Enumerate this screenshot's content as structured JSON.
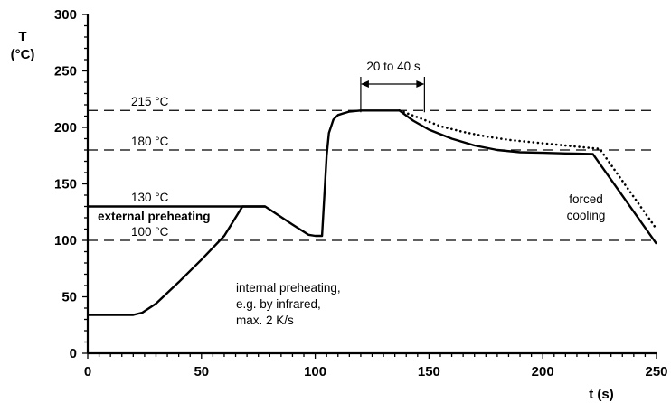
{
  "chart_data": {
    "type": "line",
    "xlabel": "t (s)",
    "ylabel": [
      "T",
      "(°C)"
    ],
    "xlim": [
      0,
      250
    ],
    "ylim": [
      0,
      300
    ],
    "x_ticks": [
      0,
      50,
      100,
      150,
      200,
      250
    ],
    "y_ticks": [
      0,
      50,
      100,
      150,
      200,
      250,
      300
    ],
    "grid": false,
    "reference_lines": [
      {
        "y": 215,
        "label": "215 °C"
      },
      {
        "y": 180,
        "label": "180 °C"
      },
      {
        "y": 100,
        "label": "100 °C"
      }
    ],
    "series": [
      {
        "style": "solid",
        "points": [
          [
            0,
            34
          ],
          [
            20,
            34
          ],
          [
            24,
            36
          ],
          [
            30,
            44
          ],
          [
            40,
            63
          ],
          [
            50,
            83
          ],
          [
            60,
            104
          ],
          [
            68,
            130
          ],
          [
            78,
            130
          ],
          [
            90,
            114
          ],
          [
            97,
            105
          ],
          [
            100,
            104
          ],
          [
            103,
            104
          ],
          [
            104,
            140
          ],
          [
            105,
            175
          ],
          [
            106,
            195
          ],
          [
            108,
            207
          ],
          [
            110,
            211
          ],
          [
            115,
            214
          ],
          [
            120,
            215
          ],
          [
            137,
            215
          ],
          [
            143,
            206
          ],
          [
            150,
            198
          ],
          [
            160,
            190
          ],
          [
            170,
            184
          ],
          [
            180,
            180
          ],
          [
            190,
            178
          ],
          [
            200,
            177.5
          ],
          [
            210,
            177
          ],
          [
            222,
            176.5
          ],
          [
            250,
            97
          ]
        ]
      },
      {
        "style": "dotted",
        "points": [
          [
            137,
            215
          ],
          [
            145,
            209
          ],
          [
            155,
            201
          ],
          [
            165,
            196
          ],
          [
            175,
            192
          ],
          [
            185,
            189
          ],
          [
            195,
            187
          ],
          [
            205,
            185
          ],
          [
            215,
            183
          ],
          [
            225,
            181
          ],
          [
            250,
            110
          ]
        ]
      },
      {
        "style": "solid",
        "points": [
          [
            0,
            130
          ],
          [
            78,
            130
          ]
        ]
      }
    ],
    "annotations": [
      {
        "text": "130 °C"
      },
      {
        "text": "external preheating"
      },
      {
        "text": [
          "internal preheating,",
          "e.g. by infrared,",
          "max. 2 K/s"
        ]
      },
      {
        "text": "20 to 40 s",
        "x_range": [
          120,
          148
        ]
      },
      {
        "text": [
          "forced",
          "cooling"
        ]
      }
    ]
  }
}
